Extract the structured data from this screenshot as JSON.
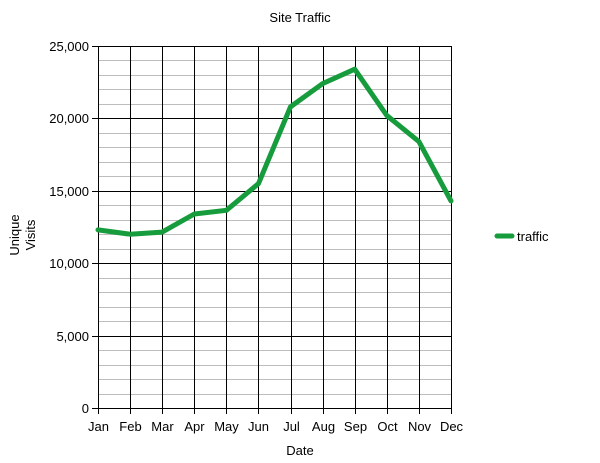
{
  "chart_data": {
    "type": "line",
    "title": "Site Traffic",
    "xlabel": "Date",
    "ylabel": [
      "Unique",
      "Visits"
    ],
    "categories": [
      "Jan",
      "Feb",
      "Mar",
      "Apr",
      "May",
      "Jun",
      "Jul",
      "Aug",
      "Sep",
      "Oct",
      "Nov",
      "Dec"
    ],
    "series": [
      {
        "name": "traffic",
        "color": "#169c3c",
        "values": [
          12300,
          12000,
          12150,
          13400,
          13650,
          15500,
          20800,
          22400,
          23400,
          20200,
          18400,
          14300
        ]
      }
    ],
    "ylim": [
      0,
      25000
    ],
    "yticks": [
      0,
      5000,
      10000,
      15000,
      20000,
      25000
    ],
    "ytick_labels": [
      "0",
      "5,000",
      "10,000",
      "15,000",
      "20,000",
      "25,000"
    ],
    "minor_gridlines_per_major": 5,
    "grid": true,
    "legend_position": "right"
  }
}
